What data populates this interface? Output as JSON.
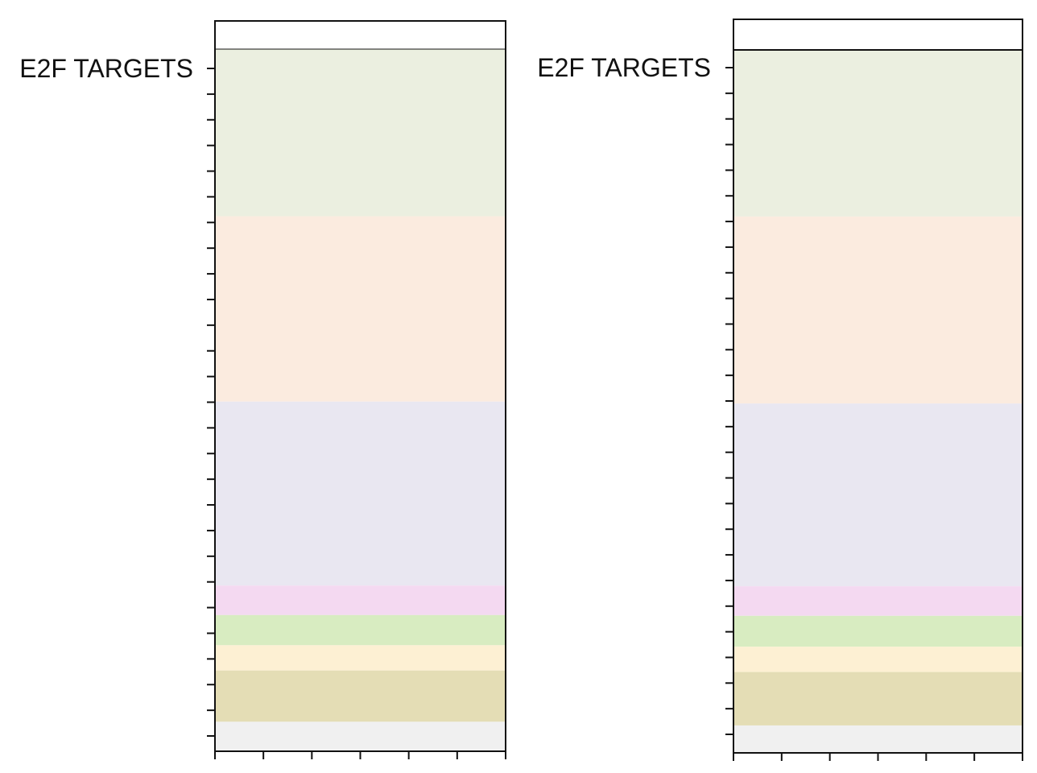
{
  "chart_data": [
    {
      "type": "bar",
      "orientation": "horizontal-bands",
      "title": "",
      "xlabel": "",
      "ylabel": "",
      "y_tick_labels": [
        "E2F TARGETS"
      ],
      "y_tick_count": 27,
      "x_tick_count": 7,
      "grid": false,
      "legend": "none",
      "bands": [
        {
          "color": "#ebefe0",
          "start": 0.0,
          "end": 0.238
        },
        {
          "color": "#fbebdf",
          "start": 0.238,
          "end": 0.502
        },
        {
          "color": "#e9e7f1",
          "start": 0.502,
          "end": 0.764
        },
        {
          "color": "#f4d9f1",
          "start": 0.764,
          "end": 0.806
        },
        {
          "color": "#d8ecc1",
          "start": 0.806,
          "end": 0.849
        },
        {
          "color": "#fdf0d3",
          "start": 0.849,
          "end": 0.885
        },
        {
          "color": "#e4ddb5",
          "start": 0.885,
          "end": 0.958
        },
        {
          "color": "#f0f0f0",
          "start": 0.958,
          "end": 1.0
        }
      ]
    },
    {
      "type": "bar",
      "orientation": "horizontal-bands",
      "title": "",
      "xlabel": "",
      "ylabel": "",
      "y_tick_labels": [
        "E2F TARGETS"
      ],
      "y_tick_count": 27,
      "x_tick_count": 7,
      "grid": false,
      "legend": "none",
      "bands": [
        {
          "color": "#ebefe0",
          "start": 0.0,
          "end": 0.237
        },
        {
          "color": "#fbebdf",
          "start": 0.237,
          "end": 0.503
        },
        {
          "color": "#e9e7f1",
          "start": 0.503,
          "end": 0.763
        },
        {
          "color": "#f4d9f1",
          "start": 0.763,
          "end": 0.805
        },
        {
          "color": "#d8ecc1",
          "start": 0.805,
          "end": 0.849
        },
        {
          "color": "#fdf0d3",
          "start": 0.849,
          "end": 0.885
        },
        {
          "color": "#e4ddb5",
          "start": 0.885,
          "end": 0.961
        },
        {
          "color": "#f0f0f0",
          "start": 0.961,
          "end": 1.0
        }
      ]
    }
  ]
}
